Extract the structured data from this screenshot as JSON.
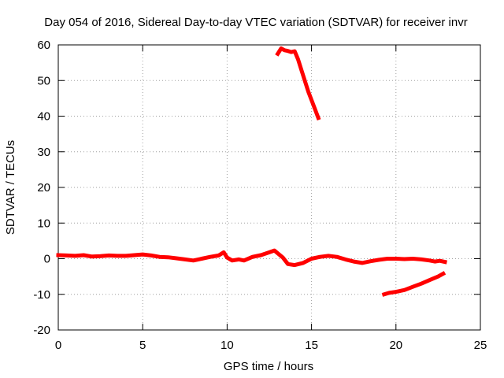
{
  "chart_data": {
    "type": "line",
    "title": "Day 054 of 2016, Sidereal Day-to-day VTEC variation (SDTVAR) for receiver invr",
    "xlabel": "GPS time / hours",
    "ylabel": "SDTVAR / TECUs",
    "xlim": [
      0,
      25
    ],
    "ylim": [
      -20,
      60
    ],
    "xticks": [
      0,
      5,
      10,
      15,
      20,
      25
    ],
    "yticks": [
      -20,
      -10,
      0,
      10,
      20,
      30,
      40,
      50,
      60
    ],
    "grid": true,
    "color": "#ff0000",
    "series": [
      {
        "x": [
          0.0,
          0.5,
          1.0,
          1.5,
          2.0,
          2.5,
          3.0,
          3.5,
          4.0,
          4.5,
          5.0,
          5.5,
          6.0,
          6.5,
          7.0,
          7.5,
          8.0,
          8.5,
          9.0,
          9.5,
          9.8,
          10.0,
          10.3,
          10.7,
          11.0,
          11.5,
          12.0,
          12.5,
          12.8,
          13.0,
          13.3,
          13.6,
          14.0,
          14.5,
          15.0,
          15.5,
          16.0,
          16.5,
          17.0,
          17.5,
          18.0,
          18.5,
          19.0,
          19.5,
          20.0,
          20.5,
          21.0,
          21.5,
          22.0,
          22.3,
          22.6,
          22.9
        ],
        "y": [
          1.0,
          0.9,
          0.8,
          1.0,
          0.6,
          0.7,
          0.9,
          0.8,
          0.8,
          1.0,
          1.2,
          0.9,
          0.5,
          0.4,
          0.1,
          -0.2,
          -0.5,
          0.0,
          0.5,
          0.9,
          1.8,
          0.3,
          -0.5,
          -0.2,
          -0.5,
          0.5,
          1.0,
          1.8,
          2.3,
          1.5,
          0.3,
          -1.5,
          -1.8,
          -1.2,
          0.0,
          0.5,
          0.8,
          0.5,
          -0.2,
          -0.8,
          -1.2,
          -0.7,
          -0.3,
          0.0,
          0.0,
          -0.1,
          0.0,
          -0.2,
          -0.5,
          -0.8,
          -0.6,
          -0.9
        ]
      },
      {
        "x": [
          13.0,
          13.2,
          13.4,
          13.6,
          13.8,
          14.0,
          14.2,
          14.4,
          14.6,
          14.8,
          15.0,
          15.2,
          15.4
        ],
        "y": [
          57.5,
          59.0,
          58.5,
          58.3,
          58.0,
          58.2,
          56.0,
          53.0,
          50.0,
          47.0,
          44.5,
          42.0,
          39.5
        ]
      },
      {
        "x": [
          19.3,
          19.6,
          20.0,
          20.5,
          21.0,
          21.5,
          22.0,
          22.5,
          22.8
        ],
        "y": [
          -10.0,
          -9.6,
          -9.3,
          -8.8,
          -7.9,
          -7.0,
          -6.0,
          -5.0,
          -4.2
        ]
      }
    ]
  }
}
